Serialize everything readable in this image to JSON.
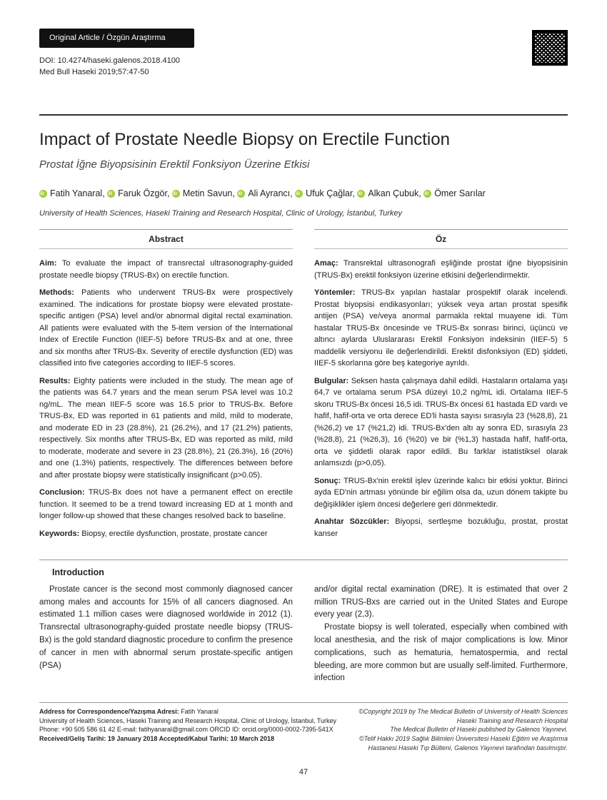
{
  "header": {
    "article_type": "Original Article / Özgün Araştırma",
    "doi": "DOI: 10.4274/haseki.galenos.2018.4100",
    "citation": "Med Bull Haseki 2019;57:47-50"
  },
  "title": "Impact of Prostate Needle Biopsy on Erectile Function",
  "subtitle": "Prostat İğne Biyopsisinin Erektil Fonksiyon Üzerine Etkisi",
  "authors": [
    "Fatih Yanaral",
    "Faruk Özgör",
    "Metin Savun",
    "Ali Ayrancı",
    "Ufuk Çağlar",
    "Alkan Çubuk",
    "Ömer Sarılar"
  ],
  "affiliation": "University of Health Sciences, Haseki Training and Research Hospital, Clinic of Urology, İstanbul, Turkey",
  "abstract_en": {
    "heading": "Abstract",
    "aim_label": "Aim:",
    "aim_text": " To evaluate the impact of transrectal ultrasonography-guided prostate needle biopsy (TRUS-Bx) on erectile function.",
    "methods_label": "Methods:",
    "methods_text": " Patients who underwent TRUS-Bx were prospectively examined. The indications for prostate biopsy were elevated prostate-specific antigen (PSA) level and/or abnormal digital rectal examination. All patients were evaluated with the 5-item version of the International Index of Erectile Function (IIEF-5) before TRUS-Bx and at one, three and six months after TRUS-Bx. Severity of erectile dysfunction (ED) was classified into five categories according to IIEF-5 scores.",
    "results_label": "Results:",
    "results_text": " Eighty patients were included in the study. The mean age of the patients was 64.7 years and the mean serum PSA level was 10.2 ng/mL. The mean IIEF-5 score was 16.5 prior to TRUS-Bx. Before TRUS-Bx, ED was reported in 61 patients and mild, mild to moderate, and moderate ED in 23 (28.8%), 21 (26.2%), and 17 (21.2%) patients, respectively. Six months after TRUS-Bx, ED was reported as mild, mild to moderate, moderate and severe in 23 (28.8%), 21 (26.3%), 16 (20%) and one (1.3%) patients, respectively. The differences between before and after prostate biopsy were statistically insignificant (p>0.05).",
    "conclusion_label": "Conclusion:",
    "conclusion_text": " TRUS-Bx does not have a permanent effect on erectile function. It seemed to be a trend toward increasing ED at 1 month and longer follow-up showed that these changes resolved back to baseline.",
    "keywords_label": "Keywords:",
    "keywords_text": " Biopsy, erectile dysfunction, prostate, prostate cancer"
  },
  "abstract_tr": {
    "heading": "Öz",
    "aim_label": "Amaç:",
    "aim_text": " Transrektal ultrasonografi eşliğinde prostat iğne biyopsisinin (TRUS-Bx) erektil fonksiyon üzerine etkisini değerlendirmektir.",
    "methods_label": "Yöntemler:",
    "methods_text": " TRUS-Bx yapılan hastalar prospektif olarak incelendi. Prostat biyopsisi endikasyonları; yüksek veya artan prostat spesifik antijen (PSA) ve/veya anormal parmakla rektal muayene idi. Tüm hastalar TRUS-Bx öncesinde ve TRUS-Bx sonrası birinci, üçüncü ve altıncı aylarda Uluslararası Erektil Fonksiyon indeksinin (IIEF-5) 5 maddelik versiyonu ile değerlendirildi. Erektil disfonksiyon (ED) şiddeti, IIEF-5 skorlarına göre beş kategoriye ayrıldı.",
    "results_label": "Bulgular:",
    "results_text": " Seksen hasta çalışmaya dahil edildi. Hastaların ortalama yaşı 64,7 ve ortalama serum PSA düzeyi 10,2 ng/mL idi. Ortalama IIEF-5 skoru TRUS-Bx öncesi 16,5 idi. TRUS-Bx öncesi 61 hastada ED vardı ve hafif, hafif-orta ve orta derece ED'li hasta sayısı sırasıyla 23 (%28,8), 21 (%26,2) ve 17 (%21,2) idi. TRUS-Bx'den altı ay sonra ED, sırasıyla 23 (%28,8), 21 (%26,3), 16 (%20) ve bir (%1,3) hastada hafif, hafif-orta, orta ve şiddetli olarak rapor edildi. Bu farklar istatistiksel olarak anlamsızdı (p>0,05).",
    "conclusion_label": "Sonuç:",
    "conclusion_text": " TRUS-Bx'nin erektil işlev üzerinde kalıcı bir etkisi yoktur. Birinci ayda ED'nin artması yönünde bir eğilim olsa da, uzun dönem takipte bu değişiklikler işlem öncesi değerlere geri dönmektedir.",
    "keywords_label": "Anahtar Sözcükler:",
    "keywords_text": " Biyopsi, sertleşme bozukluğu, prostat, prostat kanser"
  },
  "introduction": {
    "heading": "Introduction",
    "col1": "Prostate cancer is the second most commonly diagnosed cancer among males and accounts for 15% of all cancers diagnosed. An estimated 1.1 million cases were diagnosed worldwide in 2012 (1). Transrectal ultrasonography-guided prostate needle biopsy (TRUS-Bx) is the gold standard diagnostic procedure to confirm the presence of cancer in men with abnormal serum prostate-specific antigen (PSA)",
    "col2a": "and/or digital rectal examination (DRE). It is estimated that over 2 million TRUS-Bxs are carried out in the United States and Europe every year (2,3).",
    "col2b": "Prostate biopsy is well tolerated, especially when combined with local anesthesia, and the risk of major complications is low. Minor complications, such as hematuria, hematospermia, and rectal bleeding, are more common but are usually self-limited. Furthermore, infection"
  },
  "footer": {
    "correspondence_label": "Address for Correspondence/Yazışma Adresi:",
    "correspondence_name": " Fatih Yanaral",
    "correspondence_affil": "University of Health Sciences, Haseki Training and Research Hospital, Clinic of Urology, İstanbul, Turkey",
    "correspondence_contact": "Phone: +90 505 586 61 42 E-mail: fatihyanaral@gmail.com ORCID ID: orcid.org/0000-0002-7395-541X",
    "dates": "Received/Geliş Tarihi: 19 January 2018 Accepted/Kabul Tarihi: 10 March 2018",
    "copyright1": "©Copyright 2019 by The Medical Bulletin of University of Health Sciences Haseki Training and Research Hospital",
    "copyright2": "The Medical Bulletin of Haseki published by Galenos Yayınevi.",
    "copyright3": "©Telif Hakkı 2019 Sağlık Bilimleri Üniversitesi Haseki Eğitim ve Araştırma Hastanesi Haseki Tıp Bülteni, Galenos Yayınevi tarafından basılmıştır."
  },
  "page_number": "47"
}
